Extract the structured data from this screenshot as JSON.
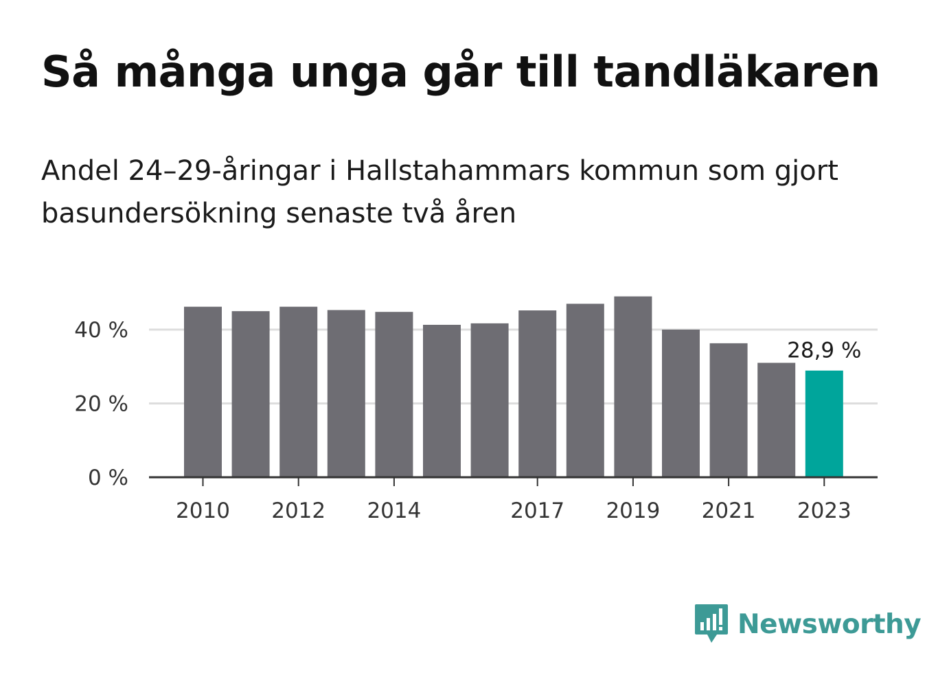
{
  "title": "Så många unga går till tandläkaren",
  "subtitle": "Andel 24–29-åringar i Hallstahammars kommun som gjort basundersökning senaste två åren",
  "brand": {
    "name": "Newsworthy",
    "color": "#3d9a96",
    "icon": "newsworthy-logo-icon"
  },
  "colors": {
    "bar": "#6e6d73",
    "highlight": "#00a59b",
    "grid": "#dddddd",
    "axis": "#333333"
  },
  "chart_data": {
    "type": "bar",
    "x": [
      2010,
      2011,
      2012,
      2013,
      2014,
      2015,
      2016,
      2017,
      2018,
      2019,
      2020,
      2021,
      2022,
      2023
    ],
    "values": [
      46.2,
      45.0,
      46.2,
      45.3,
      44.8,
      41.3,
      41.7,
      45.2,
      47.0,
      49.0,
      40.0,
      36.3,
      31.0,
      28.9
    ],
    "highlight_index": 13,
    "highlight_label": "28,9 %",
    "x_tick_labels": [
      {
        "x": 2010,
        "label": "2010"
      },
      {
        "x": 2012,
        "label": "2012"
      },
      {
        "x": 2014,
        "label": "2014"
      },
      {
        "x": 2017,
        "label": "2017"
      },
      {
        "x": 2019,
        "label": "2019"
      },
      {
        "x": 2021,
        "label": "2021"
      },
      {
        "x": 2023,
        "label": "2023"
      }
    ],
    "y_ticks": [
      {
        "value": 0,
        "label": "0 %"
      },
      {
        "value": 20,
        "label": "20 %"
      },
      {
        "value": 40,
        "label": "40 %"
      }
    ],
    "ylim": [
      0,
      50
    ],
    "grid": true,
    "xlabel": "",
    "ylabel": ""
  }
}
